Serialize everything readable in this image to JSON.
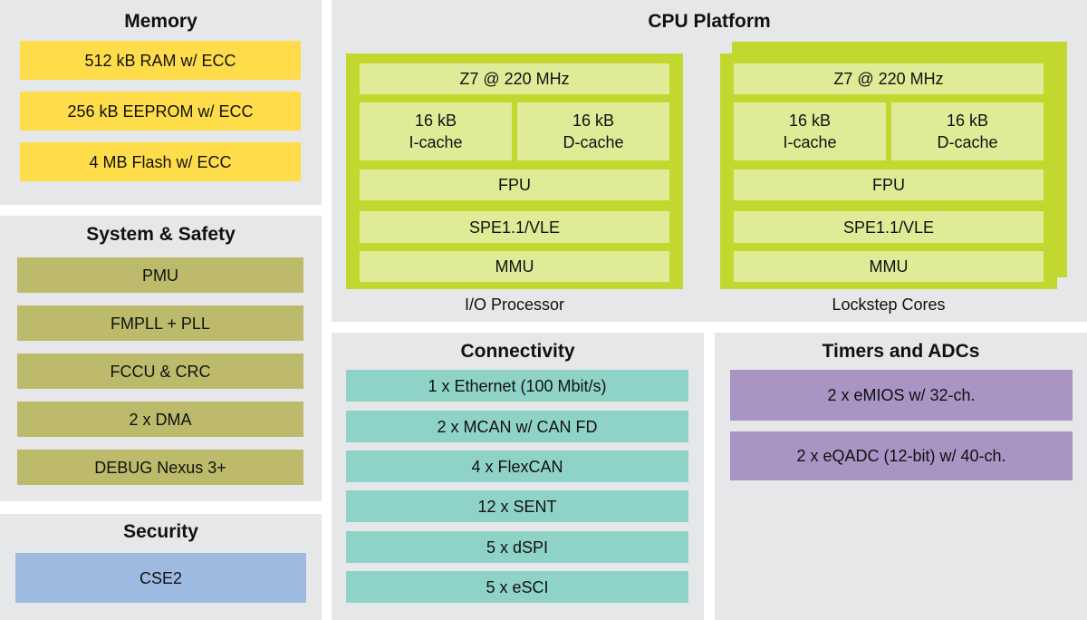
{
  "memory": {
    "title": "Memory",
    "items": [
      "512 kB RAM w/ ECC",
      "256 kB EEPROM w/ ECC",
      "4 MB Flash w/ ECC"
    ],
    "color": "#ffdd4a"
  },
  "system_safety": {
    "title": "System & Safety",
    "items": [
      "PMU",
      "FMPLL + PLL",
      "FCCU & CRC",
      "2 x DMA",
      "DEBUG Nexus 3+"
    ],
    "color": "#bdba6b"
  },
  "security": {
    "title": "Security",
    "items": [
      "CSE2"
    ],
    "color": "#9fbae0"
  },
  "cpu": {
    "title": "CPU Platform",
    "cores": [
      {
        "label": "I/O Processor",
        "core": "Z7 @ 220 MHz",
        "icache": "16 kB\nI-cache",
        "dcache": "16 kB\nD-cache",
        "fpu": "FPU",
        "spe": "SPE1.1/VLE",
        "mmu": "MMU"
      },
      {
        "label": "Lockstep Cores",
        "core": "Z7 @ 220 MHz",
        "icache": "16 kB\nI-cache",
        "dcache": "16 kB\nD-cache",
        "fpu": "FPU",
        "spe": "SPE1.1/VLE",
        "mmu": "MMU"
      }
    ],
    "color": "#c3d82f"
  },
  "connectivity": {
    "title": "Connectivity",
    "items": [
      "1 x Ethernet (100 Mbit/s)",
      "2 x MCAN w/ CAN FD",
      "4 x FlexCAN",
      "12 x SENT",
      "5 x dSPI",
      "5 x eSCI"
    ],
    "color": "#8fd3c8"
  },
  "timers": {
    "title": "Timers and ADCs",
    "items": [
      "2 x eMIOS w/ 32-ch.",
      "2 x eQADC (12-bit) w/ 40-ch."
    ],
    "color": "#a994c4"
  }
}
